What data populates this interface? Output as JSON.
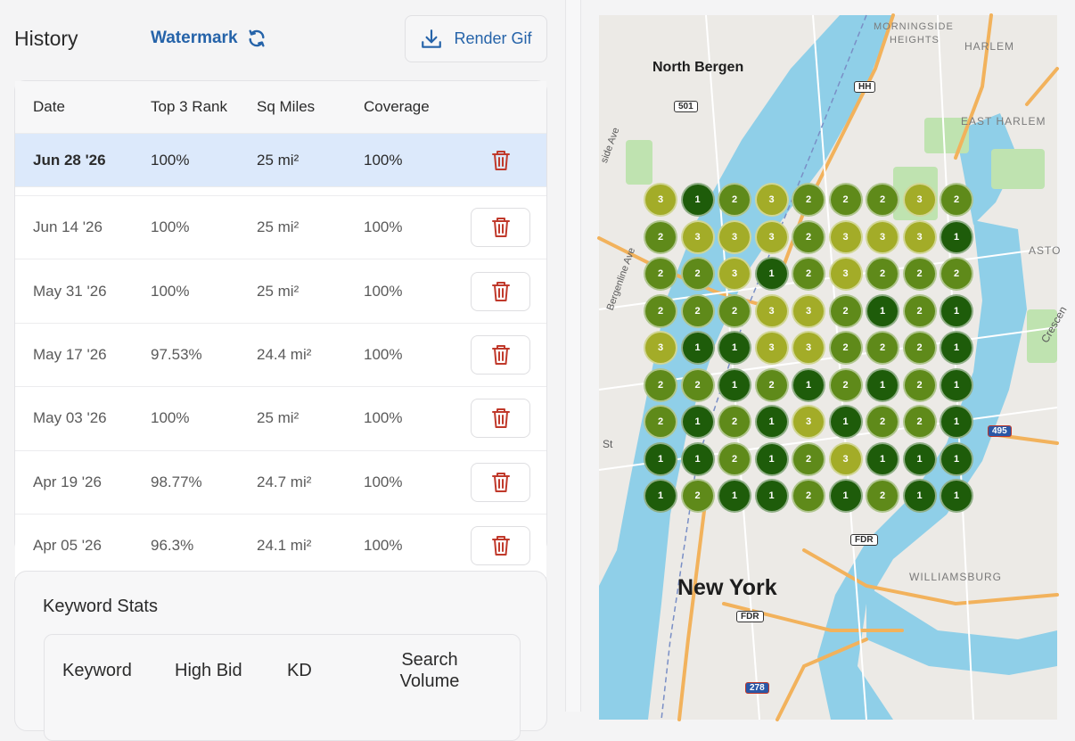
{
  "history": {
    "title": "History",
    "watermark_label": "Watermark",
    "render_label": "Render Gif",
    "columns": [
      "Date",
      "Top 3 Rank",
      "Sq Miles",
      "Coverage"
    ],
    "rows": [
      {
        "date": "Jun 28 '26",
        "rank": "100%",
        "sq": "25 mi²",
        "coverage": "100%",
        "selected": true
      },
      {
        "date": "Jun 14 '26",
        "rank": "100%",
        "sq": "25 mi²",
        "coverage": "100%"
      },
      {
        "date": "May 31 '26",
        "rank": "100%",
        "sq": "25 mi²",
        "coverage": "100%"
      },
      {
        "date": "May 17 '26",
        "rank": "97.53%",
        "sq": "24.4 mi²",
        "coverage": "100%"
      },
      {
        "date": "May 03 '26",
        "rank": "100%",
        "sq": "25 mi²",
        "coverage": "100%"
      },
      {
        "date": "Apr 19 '26",
        "rank": "98.77%",
        "sq": "24.7 mi²",
        "coverage": "100%"
      },
      {
        "date": "Apr 05 '26",
        "rank": "96.3%",
        "sq": "24.1 mi²",
        "coverage": "100%"
      }
    ]
  },
  "keyword_stats": {
    "title": "Keyword Stats",
    "columns": [
      "Keyword",
      "High Bid",
      "KD",
      "Search Volume"
    ]
  },
  "map": {
    "labels": {
      "north_bergen": "North Bergen",
      "morningside": "MORNINGSIDE",
      "heights": "HEIGHTS",
      "harlem": "HARLEM",
      "east_harlem": "EAST HARLEM",
      "new_york": "New York",
      "williamsburg": "WILLIAMSBURG",
      "astoria": "ASTO",
      "crescent": "Crescen",
      "side_ave": "side Ave",
      "bergenline": "Bergenline Ave",
      "st": "St",
      "shield_501": "501",
      "shield_hh": "HH",
      "shield_fdr1": "FDR",
      "shield_fdr2": "FDR",
      "shield_495": "495",
      "shield_278": "278"
    },
    "grid": [
      [
        3,
        1,
        2,
        3,
        2,
        2,
        2,
        3,
        2
      ],
      [
        2,
        3,
        3,
        3,
        2,
        3,
        3,
        3,
        1
      ],
      [
        2,
        2,
        3,
        1,
        2,
        3,
        2,
        2,
        2
      ],
      [
        2,
        2,
        2,
        3,
        3,
        2,
        1,
        2,
        1
      ],
      [
        3,
        1,
        1,
        3,
        3,
        2,
        2,
        2,
        1
      ],
      [
        2,
        2,
        1,
        2,
        1,
        2,
        1,
        2,
        1
      ],
      [
        2,
        1,
        2,
        1,
        3,
        1,
        2,
        2,
        1
      ],
      [
        1,
        1,
        2,
        1,
        2,
        3,
        1,
        1,
        1
      ],
      [
        1,
        2,
        1,
        1,
        2,
        1,
        2,
        1,
        1
      ]
    ],
    "colors": {
      "1": "#1e5c0a",
      "2": "#5f8a1a",
      "3": "#a3ac28"
    }
  }
}
